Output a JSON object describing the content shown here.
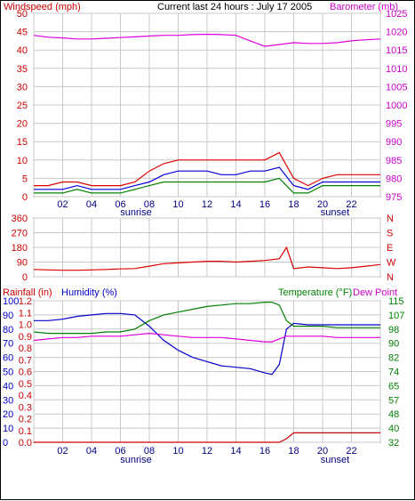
{
  "chart_data": [
    {
      "type": "line",
      "title": "Current last 24 hours : July 17 2005",
      "left_axis_label": "Windspeed (mph)",
      "right_axis_label": "Barometer (mb)",
      "left_ticks": [
        "0",
        "5",
        "10",
        "15",
        "20",
        "25",
        "30",
        "35",
        "40",
        "45",
        "50"
      ],
      "right_ticks": [
        "975",
        "980",
        "985",
        "990",
        "995",
        "1000",
        "1005",
        "1010",
        "1015",
        "1020",
        "1025"
      ],
      "x_ticks": [
        "02",
        "04",
        "06",
        "08",
        "10",
        "12",
        "14",
        "16",
        "18",
        "20",
        "22"
      ],
      "x_annotations": [
        "sunrise",
        "sunset"
      ],
      "colors": {
        "wind": "#dd0000",
        "gust": "#0000dd",
        "avg": "#008000",
        "barometer": "#dd00dd",
        "grid": "#c8c8c8",
        "axis_left": "#cc0000",
        "axis_right": "#cc00cc"
      },
      "ylim_left": [
        0,
        50
      ],
      "ylim_right": [
        975,
        1025
      ],
      "grid": true,
      "x": [
        0,
        1,
        2,
        3,
        4,
        5,
        6,
        7,
        8,
        9,
        10,
        11,
        12,
        13,
        14,
        15,
        16,
        17,
        18,
        19,
        20,
        21,
        22,
        23,
        24
      ],
      "series": [
        {
          "values": [
            3,
            3,
            4,
            4,
            3,
            3,
            3,
            4,
            7,
            9,
            10,
            10,
            10,
            10,
            10,
            10,
            10,
            12,
            5,
            3,
            5,
            6,
            6,
            6,
            6
          ]
        },
        {
          "values": [
            2,
            2,
            2,
            3,
            2,
            2,
            2,
            3,
            4,
            6,
            7,
            7,
            7,
            6,
            6,
            7,
            7,
            8,
            3,
            2,
            4,
            4,
            4,
            4,
            4
          ]
        },
        {
          "values": [
            1,
            1,
            1,
            2,
            1,
            1,
            1,
            2,
            3,
            4,
            4,
            4,
            4,
            4,
            4,
            4,
            4,
            5,
            1,
            1,
            3,
            3,
            3,
            3,
            3
          ]
        },
        {
          "values": [
            1019,
            1018.5,
            1018.3,
            1018,
            1018,
            1018.2,
            1018.4,
            1018.6,
            1018.8,
            1019,
            1019,
            1019.2,
            1019.3,
            1019.2,
            1019,
            1017.5,
            1016,
            1016.5,
            1017,
            1016.8,
            1016.8,
            1017,
            1017.5,
            1017.8,
            1018
          ]
        }
      ]
    },
    {
      "type": "line",
      "left_ticks": [
        "0",
        "90",
        "180",
        "270",
        "360"
      ],
      "right_ticks": [
        "N",
        "S",
        "E",
        "W",
        "N"
      ],
      "ylim": [
        0,
        360
      ],
      "colors": {
        "direction": "#dd0000"
      },
      "x": [
        0,
        1,
        2,
        3,
        4,
        5,
        6,
        7,
        8,
        9,
        10,
        11,
        12,
        13,
        14,
        15,
        16,
        17,
        17.5,
        18,
        19,
        20,
        21,
        22,
        23,
        24
      ],
      "series": [
        {
          "values": [
            45,
            42,
            40,
            40,
            42,
            45,
            48,
            50,
            65,
            80,
            85,
            90,
            95,
            95,
            90,
            95,
            100,
            110,
            180,
            50,
            60,
            55,
            50,
            55,
            65,
            75
          ]
        }
      ]
    },
    {
      "type": "line",
      "rain_label": "Rainfall (in)",
      "humidity_label": "Humidity (%)",
      "temperature_label": "Temperature (°F)",
      "dewpoint_label": "Dew Point",
      "left_outer_ticks": [
        "0",
        "10",
        "20",
        "30",
        "40",
        "50",
        "60",
        "70",
        "80",
        "90",
        "100"
      ],
      "left_inner_ticks": [
        "0.0",
        "0.1",
        "0.2",
        "0.3",
        "0.4",
        "0.5",
        "0.6",
        "0.7",
        "0.8",
        "0.9",
        "1.0",
        "1.1",
        "1.2"
      ],
      "right_ticks": [
        "32",
        "40",
        "48",
        "57",
        "65",
        "74",
        "82",
        "90",
        "98",
        "107",
        "115"
      ],
      "ylim_humidity": [
        0,
        100
      ],
      "ylim_temperature": [
        32,
        115
      ],
      "ylim_rain": [
        0,
        1.2
      ],
      "colors": {
        "humidity": "#0000cc",
        "temperature": "#008000",
        "dewpoint": "#dd00dd",
        "rain": "#cc0000",
        "axis_rain": "#cc0000",
        "axis_hum": "#0000cc",
        "axis_temp": "#008000"
      },
      "x": [
        0,
        1,
        2,
        3,
        4,
        5,
        6,
        7,
        8,
        9,
        10,
        11,
        12,
        13,
        14,
        15,
        16,
        16.5,
        17,
        17.5,
        18,
        19,
        20,
        21,
        22,
        23,
        24
      ],
      "series": [
        {
          "values": [
            86,
            86,
            87,
            89,
            90,
            91,
            91,
            90,
            82,
            72,
            65,
            60,
            57,
            54,
            53,
            52,
            49,
            48,
            55,
            80,
            84,
            83,
            83,
            83,
            83,
            83,
            83
          ]
        },
        {
          "values": [
            78,
            77,
            77,
            77,
            77,
            78,
            78,
            80,
            86,
            90,
            92,
            94,
            96,
            97,
            98,
            98,
            99,
            99,
            97,
            86,
            82,
            82,
            82,
            81,
            81,
            81,
            81
          ]
        },
        {
          "values": [
            72,
            73,
            74,
            74,
            75,
            75,
            75,
            76,
            77,
            76,
            75,
            74,
            74,
            74,
            73,
            72,
            71,
            71,
            73,
            75,
            75,
            75,
            75,
            74,
            74,
            74,
            74
          ]
        },
        {
          "values": [
            0,
            0,
            0,
            0,
            0,
            0,
            0,
            0,
            0,
            0,
            0,
            0,
            0,
            0,
            0,
            0,
            0,
            0,
            0,
            0.03,
            0.08,
            0.08,
            0.08,
            0.08,
            0.08,
            0.08,
            0.08
          ]
        }
      ]
    }
  ]
}
